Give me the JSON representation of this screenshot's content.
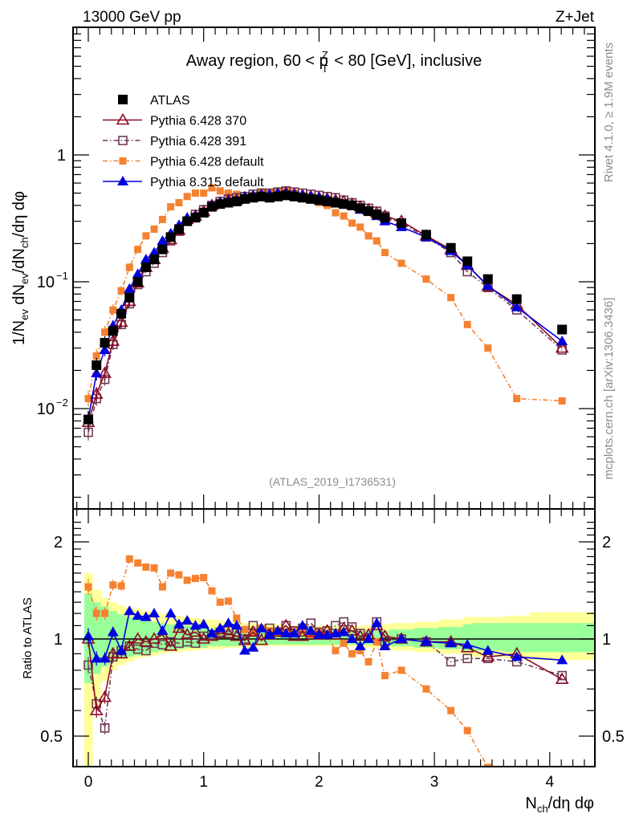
{
  "header": {
    "left": "13000 GeV pp",
    "right": "Z+Jet"
  },
  "side_labels": {
    "rivet": "Rivet 4.1.0, ≥ 1.9M events",
    "mcplots": "mcplots.cern.ch [arXiv:1306.3436]"
  },
  "analysis_id": "(ATLAS_2019_I1736531)",
  "colors": {
    "atlas": "#000000",
    "p370": "#8b0a24",
    "p391": "#6e3b55",
    "p6def": "#f58231",
    "p8def": "#0000e0",
    "band_yellow": "#ffff99",
    "band_green": "#99ff99"
  },
  "chart_data": [
    {
      "type": "line",
      "panel": "main",
      "title": "Away region, 60 < p_T^Z < 80 [GeV], inclusive",
      "title_parts": {
        "pre": "Away region, 60 < p",
        "sup": "Z",
        "sub": "T",
        "post": " < 80 [GeV], inclusive"
      },
      "ylabel": "1/N_ev dN_ev/dN_ch/dη dφ",
      "ylabel_parts": [
        "1/N",
        "ev",
        " dN",
        "ev",
        "/dN",
        "ch",
        "/dη dφ"
      ],
      "yscale": "log",
      "ylim": [
        0.0013,
        8
      ],
      "xlim": [
        -0.13,
        4.4
      ],
      "yticks": [
        {
          "v": 1,
          "label": "1"
        },
        {
          "v": 0.1,
          "label": "10",
          "exp": "−1"
        },
        {
          "v": 0.01,
          "label": "10",
          "exp": "−2"
        }
      ],
      "legend_position": "top-left",
      "x": [
        0.0,
        0.071,
        0.143,
        0.214,
        0.286,
        0.357,
        0.429,
        0.5,
        0.571,
        0.643,
        0.714,
        0.786,
        0.857,
        0.929,
        1.0,
        1.071,
        1.143,
        1.214,
        1.286,
        1.357,
        1.429,
        1.5,
        1.571,
        1.643,
        1.714,
        1.786,
        1.857,
        1.929,
        2.0,
        2.071,
        2.143,
        2.214,
        2.286,
        2.357,
        2.429,
        2.5,
        2.571,
        2.714,
        2.929,
        3.143,
        3.286,
        3.464,
        3.714,
        4.107
      ],
      "series": [
        {
          "name": "ATLAS",
          "key": "atlas",
          "marker": "square-filled",
          "line": "none",
          "values": [
            0.0082,
            0.022,
            0.033,
            0.041,
            0.056,
            0.075,
            0.1,
            0.13,
            0.15,
            0.18,
            0.225,
            0.26,
            0.3,
            0.32,
            0.35,
            0.39,
            0.41,
            0.42,
            0.43,
            0.45,
            0.46,
            0.47,
            0.46,
            0.47,
            0.48,
            0.47,
            0.46,
            0.45,
            0.44,
            0.43,
            0.42,
            0.41,
            0.4,
            0.38,
            0.36,
            0.34,
            0.32,
            0.29,
            0.235,
            0.185,
            0.145,
            0.105,
            0.073,
            0.042
          ]
        },
        {
          "name": "Pythia 6.428 370",
          "key": "p370",
          "marker": "triangle-open",
          "line": "solid",
          "values": [
            0.0078,
            0.013,
            0.019,
            0.034,
            0.048,
            0.07,
            0.098,
            0.13,
            0.15,
            0.185,
            0.215,
            0.255,
            0.31,
            0.33,
            0.36,
            0.4,
            0.42,
            0.44,
            0.44,
            0.46,
            0.47,
            0.48,
            0.48,
            0.49,
            0.5,
            0.49,
            0.48,
            0.47,
            0.46,
            0.45,
            0.44,
            0.43,
            0.41,
            0.39,
            0.37,
            0.35,
            0.33,
            0.3,
            0.23,
            0.18,
            0.135,
            0.092,
            0.066,
            0.03
          ]
        },
        {
          "name": "Pythia 6.428 391",
          "key": "p391",
          "marker": "square-open",
          "line": "dashdot",
          "values": [
            0.0065,
            0.012,
            0.017,
            0.032,
            0.046,
            0.067,
            0.095,
            0.12,
            0.14,
            0.17,
            0.21,
            0.25,
            0.3,
            0.34,
            0.37,
            0.4,
            0.43,
            0.45,
            0.46,
            0.47,
            0.49,
            0.5,
            0.5,
            0.51,
            0.52,
            0.51,
            0.5,
            0.49,
            0.48,
            0.47,
            0.46,
            0.44,
            0.42,
            0.4,
            0.38,
            0.36,
            0.33,
            0.29,
            0.225,
            0.17,
            0.12,
            0.09,
            0.06,
            0.029
          ]
        },
        {
          "name": "Pythia 6.428 default",
          "key": "p6def",
          "marker": "square-filled-small",
          "line": "dashdot",
          "values": [
            0.012,
            0.026,
            0.04,
            0.06,
            0.085,
            0.13,
            0.18,
            0.23,
            0.26,
            0.31,
            0.39,
            0.42,
            0.47,
            0.5,
            0.5,
            0.55,
            0.52,
            0.5,
            0.49,
            0.46,
            0.48,
            0.51,
            0.5,
            0.52,
            0.53,
            0.5,
            0.47,
            0.44,
            0.42,
            0.4,
            0.35,
            0.33,
            0.29,
            0.27,
            0.23,
            0.21,
            0.17,
            0.14,
            0.105,
            0.075,
            0.046,
            0.03,
            0.012,
            0.0115
          ]
        },
        {
          "name": "Pythia 8.315 default",
          "key": "p8def",
          "marker": "triangle-filled",
          "line": "solid",
          "values": [
            0.0083,
            0.019,
            0.029,
            0.045,
            0.06,
            0.088,
            0.115,
            0.15,
            0.17,
            0.21,
            0.24,
            0.28,
            0.32,
            0.33,
            0.35,
            0.4,
            0.42,
            0.43,
            0.44,
            0.47,
            0.48,
            0.49,
            0.49,
            0.5,
            0.5,
            0.49,
            0.48,
            0.47,
            0.46,
            0.45,
            0.43,
            0.41,
            0.4,
            0.37,
            0.36,
            0.33,
            0.3,
            0.27,
            0.225,
            0.175,
            0.135,
            0.093,
            0.063,
            0.034
          ]
        }
      ]
    },
    {
      "type": "line",
      "panel": "ratio",
      "xlabel": "N_ch/dη dφ",
      "xlabel_parts": [
        "N",
        "ch",
        "/dη dφ"
      ],
      "ylabel": "Ratio to ATLAS",
      "yscale": "log",
      "ylim": [
        0.415,
        2.33
      ],
      "xlim": [
        -0.13,
        4.4
      ],
      "xticks": [
        {
          "v": 0,
          "label": "0"
        },
        {
          "v": 1,
          "label": "1"
        },
        {
          "v": 2,
          "label": "2"
        },
        {
          "v": 3,
          "label": "3"
        },
        {
          "v": 4,
          "label": "4"
        }
      ],
      "yticks": [
        {
          "v": 0.5,
          "label": "0.5"
        },
        {
          "v": 1,
          "label": "1"
        },
        {
          "v": 2,
          "label": "2"
        }
      ],
      "reference_line": 1,
      "bands": {
        "x_edges": [
          -0.035,
          0.035,
          0.107,
          0.179,
          0.25,
          0.321,
          0.393,
          0.464,
          0.536,
          0.607,
          0.679,
          0.75,
          0.821,
          0.893,
          0.964,
          1.036,
          1.107,
          1.179,
          1.25,
          1.321,
          1.393,
          1.464,
          1.536,
          1.607,
          1.679,
          1.75,
          1.821,
          1.893,
          1.964,
          2.036,
          2.107,
          2.179,
          2.25,
          2.321,
          2.393,
          2.464,
          2.536,
          2.607,
          2.821,
          3.036,
          3.25,
          3.321,
          3.607,
          3.821,
          4.393
        ],
        "yellow_hi": [
          1.6,
          1.42,
          1.34,
          1.3,
          1.27,
          1.25,
          1.24,
          1.22,
          1.21,
          1.2,
          1.19,
          1.18,
          1.17,
          1.16,
          1.15,
          1.15,
          1.14,
          1.13,
          1.13,
          1.12,
          1.12,
          1.11,
          1.11,
          1.11,
          1.1,
          1.1,
          1.1,
          1.1,
          1.1,
          1.1,
          1.1,
          1.1,
          1.1,
          1.1,
          1.1,
          1.1,
          1.11,
          1.12,
          1.13,
          1.15,
          1.17,
          1.17,
          1.18,
          1.21
        ],
        "yellow_lo": [
          0.38,
          0.62,
          0.74,
          0.8,
          0.83,
          0.85,
          0.87,
          0.88,
          0.89,
          0.9,
          0.91,
          0.91,
          0.92,
          0.92,
          0.93,
          0.93,
          0.93,
          0.94,
          0.94,
          0.94,
          0.94,
          0.95,
          0.95,
          0.95,
          0.95,
          0.95,
          0.95,
          0.95,
          0.95,
          0.95,
          0.95,
          0.95,
          0.95,
          0.95,
          0.94,
          0.94,
          0.93,
          0.92,
          0.91,
          0.9,
          0.89,
          0.88,
          0.87,
          0.86
        ],
        "green_hi": [
          1.38,
          1.3,
          1.26,
          1.22,
          1.19,
          1.17,
          1.16,
          1.14,
          1.13,
          1.12,
          1.11,
          1.1,
          1.1,
          1.09,
          1.08,
          1.08,
          1.07,
          1.07,
          1.07,
          1.06,
          1.06,
          1.06,
          1.06,
          1.06,
          1.06,
          1.06,
          1.06,
          1.06,
          1.06,
          1.06,
          1.06,
          1.06,
          1.06,
          1.06,
          1.06,
          1.06,
          1.06,
          1.07,
          1.08,
          1.09,
          1.11,
          1.12,
          1.12,
          1.12
        ],
        "green_lo": [
          0.73,
          0.78,
          0.82,
          0.85,
          0.87,
          0.88,
          0.89,
          0.9,
          0.91,
          0.92,
          0.93,
          0.93,
          0.94,
          0.94,
          0.94,
          0.95,
          0.95,
          0.95,
          0.95,
          0.96,
          0.96,
          0.96,
          0.96,
          0.96,
          0.96,
          0.96,
          0.96,
          0.96,
          0.96,
          0.96,
          0.96,
          0.96,
          0.96,
          0.96,
          0.96,
          0.96,
          0.96,
          0.95,
          0.94,
          0.93,
          0.92,
          0.92,
          0.91,
          0.91
        ]
      },
      "series": [
        {
          "name": "Pythia 6.428 370",
          "key": "p370",
          "marker": "triangle-open",
          "line": "solid",
          "values": [
            1.0,
            0.6,
            0.66,
            0.9,
            0.9,
            0.95,
            1.0,
            0.98,
            1.0,
            1.03,
            0.95,
            1.08,
            1.03,
            1.05,
            1.0,
            1.02,
            1.04,
            1.04,
            1.02,
            0.99,
            1.05,
            0.99,
            1.03,
            1.05,
            1.1,
            1.02,
            1.02,
            1.05,
            1.03,
            1.06,
            1.03,
            1.08,
            1.06,
            1.02,
            1.03,
            1.1,
            1.02,
            1.0,
            0.98,
            0.98,
            0.94,
            0.88,
            0.9,
            0.75
          ]
        },
        {
          "name": "Pythia 6.428 391",
          "key": "p391",
          "marker": "square-open",
          "line": "dashdot",
          "values": [
            0.83,
            0.63,
            0.53,
            0.88,
            0.92,
            0.95,
            0.93,
            0.92,
            0.97,
            0.96,
            0.98,
            0.97,
            0.98,
            0.97,
            1.02,
            1.03,
            1.05,
            1.06,
            1.05,
            1.0,
            1.1,
            1.03,
            1.08,
            1.05,
            1.1,
            1.06,
            1.08,
            1.12,
            1.05,
            1.06,
            1.1,
            1.13,
            1.09,
            1.04,
            1.01,
            1.13,
            0.98,
            1.0,
            0.98,
            0.85,
            0.87,
            0.87,
            0.85,
            0.77
          ]
        },
        {
          "name": "Pythia 6.428 default",
          "key": "p6def",
          "marker": "square-filled-small",
          "line": "dashdot",
          "values": [
            1.45,
            1.2,
            1.2,
            1.47,
            1.46,
            1.77,
            1.72,
            1.67,
            1.66,
            1.45,
            1.6,
            1.58,
            1.52,
            1.54,
            1.55,
            1.41,
            1.3,
            1.31,
            1.16,
            1.07,
            1.05,
            1.08,
            1.06,
            1.05,
            1.04,
            1.06,
            1.06,
            1.03,
            1.05,
            1.03,
            0.92,
            0.97,
            0.9,
            0.92,
            0.85,
            0.98,
            0.77,
            0.8,
            0.7,
            0.6,
            0.52,
            0.4,
            0.36,
            0.28
          ]
        },
        {
          "name": "Pythia 8.315 default",
          "key": "p8def",
          "marker": "triangle-filled",
          "line": "solid",
          "values": [
            1.02,
            0.87,
            0.87,
            1.05,
            0.92,
            1.22,
            1.18,
            1.17,
            1.2,
            1.06,
            1.2,
            1.11,
            1.14,
            1.1,
            1.11,
            1.04,
            1.08,
            1.12,
            1.1,
            0.92,
            0.94,
            1.08,
            1.03,
            1.06,
            1.04,
            1.04,
            1.1,
            1.06,
            1.03,
            1.03,
            1.04,
            1.05,
            1.0,
            0.95,
            1.0,
            1.12,
            0.95,
            1.0,
            0.98,
            0.97,
            0.96,
            0.92,
            0.88,
            0.86
          ]
        }
      ]
    }
  ]
}
